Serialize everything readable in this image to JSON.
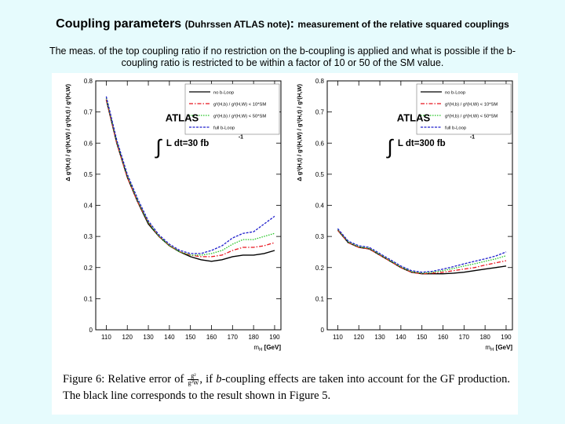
{
  "header": {
    "title_main": "Coupling parameters",
    "title_source": "(Duhrssen ATLAS note)",
    "title_colon": ":",
    "title_rest": "measurement of the relative squared couplings",
    "description": "The meas. of the top coupling ratio if no restriction on the b-coupling is applied and what is possible if the b-coupling ratio is restricted to be within a factor of 10 or 50 of the SM value."
  },
  "figure": {
    "caption_a": "Figure 6: Relative error of",
    "caption_frac_num": "g²",
    "caption_frac_den": "g²W",
    "caption_b": ", if",
    "caption_b_italic": "b",
    "caption_c": "-coupling effects are taken into account for the GF production. The black line corresponds to the result shown in Figure 5."
  },
  "colors": {
    "no_bloop": "#000000",
    "ratio10": "#e8141e",
    "ratio50": "#22c422",
    "full_bloop": "#2020cc"
  },
  "chart_data": [
    {
      "type": "line",
      "panel": "left",
      "experiment": "ATLAS",
      "luminosity": "L dt=30 fb",
      "lumi_exp": "-1",
      "ylabel": "Δ g²(H,t) / g²(H,W)  /  g²(H,t) / g²(H,W)",
      "xlabel": "m",
      "xlabel_sub": "H",
      "xlabel_unit": "[GeV]",
      "xlim": [
        105,
        193
      ],
      "ylim": [
        0,
        0.8
      ],
      "xticks": [
        110,
        120,
        130,
        140,
        150,
        160,
        170,
        180,
        190
      ],
      "yticks": [
        0,
        0.1,
        0.2,
        0.3,
        0.4,
        0.5,
        0.6,
        0.7,
        0.8
      ],
      "legend_position": "top-right",
      "series": [
        {
          "name": "no b-Loop",
          "style": "solid",
          "x": [
            110,
            115,
            120,
            125,
            130,
            135,
            140,
            145,
            150,
            155,
            160,
            165,
            170,
            175,
            180,
            185,
            190
          ],
          "y": [
            0.74,
            0.6,
            0.49,
            0.41,
            0.34,
            0.3,
            0.27,
            0.25,
            0.235,
            0.225,
            0.22,
            0.225,
            0.235,
            0.24,
            0.24,
            0.245,
            0.255
          ]
        },
        {
          "name": "g²(H,b) / g²(H,W) < 10*SM",
          "style": "dashdot",
          "x": [
            110,
            115,
            120,
            125,
            130,
            135,
            140,
            145,
            150,
            155,
            160,
            165,
            170,
            175,
            180,
            185,
            190
          ],
          "y": [
            0.74,
            0.6,
            0.49,
            0.41,
            0.345,
            0.3,
            0.27,
            0.25,
            0.24,
            0.235,
            0.235,
            0.24,
            0.255,
            0.265,
            0.265,
            0.27,
            0.28
          ]
        },
        {
          "name": "g²(H,b) / g²(H,W) < 50*SM",
          "style": "dotted",
          "x": [
            110,
            115,
            120,
            125,
            130,
            135,
            140,
            145,
            150,
            155,
            160,
            165,
            170,
            175,
            180,
            185,
            190
          ],
          "y": [
            0.745,
            0.605,
            0.495,
            0.415,
            0.345,
            0.3,
            0.27,
            0.25,
            0.24,
            0.24,
            0.245,
            0.255,
            0.275,
            0.29,
            0.29,
            0.3,
            0.31
          ]
        },
        {
          "name": "full b-Loop",
          "style": "dashed",
          "x": [
            110,
            115,
            120,
            125,
            130,
            135,
            140,
            145,
            150,
            155,
            160,
            165,
            170,
            175,
            180,
            185,
            190
          ],
          "y": [
            0.75,
            0.61,
            0.5,
            0.42,
            0.35,
            0.305,
            0.275,
            0.255,
            0.245,
            0.245,
            0.255,
            0.27,
            0.295,
            0.31,
            0.315,
            0.34,
            0.365
          ]
        }
      ]
    },
    {
      "type": "line",
      "panel": "right",
      "experiment": "ATLAS",
      "luminosity": "L dt=300 fb",
      "lumi_exp": "-1",
      "ylabel": "Δ g²(H,t) / g²(H,W)  /  g²(H,t) / g²(H,W)",
      "xlabel": "m",
      "xlabel_sub": "H",
      "xlabel_unit": "[GeV]",
      "xlim": [
        105,
        193
      ],
      "ylim": [
        0,
        0.8
      ],
      "xticks": [
        110,
        120,
        130,
        140,
        150,
        160,
        170,
        180,
        190
      ],
      "yticks": [
        0,
        0.1,
        0.2,
        0.3,
        0.4,
        0.5,
        0.6,
        0.7,
        0.8
      ],
      "legend_position": "top-right",
      "series": [
        {
          "name": "no b-Loop",
          "style": "solid",
          "x": [
            110,
            115,
            120,
            125,
            130,
            135,
            140,
            145,
            150,
            155,
            160,
            165,
            170,
            175,
            180,
            185,
            190
          ],
          "y": [
            0.32,
            0.28,
            0.265,
            0.26,
            0.24,
            0.22,
            0.2,
            0.185,
            0.18,
            0.18,
            0.18,
            0.182,
            0.185,
            0.19,
            0.195,
            0.2,
            0.205
          ]
        },
        {
          "name": "g²(H,b) / g²(H,W) < 10*SM",
          "style": "dashdot",
          "x": [
            110,
            115,
            120,
            125,
            130,
            135,
            140,
            145,
            150,
            155,
            160,
            165,
            170,
            175,
            180,
            185,
            190
          ],
          "y": [
            0.32,
            0.28,
            0.265,
            0.26,
            0.24,
            0.22,
            0.2,
            0.185,
            0.18,
            0.182,
            0.185,
            0.19,
            0.195,
            0.2,
            0.208,
            0.215,
            0.222
          ]
        },
        {
          "name": "g²(H,b) / g²(H,W) < 50*SM",
          "style": "dotted",
          "x": [
            110,
            115,
            120,
            125,
            130,
            135,
            140,
            145,
            150,
            155,
            160,
            165,
            170,
            175,
            180,
            185,
            190
          ],
          "y": [
            0.322,
            0.282,
            0.267,
            0.262,
            0.242,
            0.222,
            0.202,
            0.187,
            0.182,
            0.185,
            0.19,
            0.197,
            0.205,
            0.212,
            0.22,
            0.228,
            0.238
          ]
        },
        {
          "name": "full b-Loop",
          "style": "dashed",
          "x": [
            110,
            115,
            120,
            125,
            130,
            135,
            140,
            145,
            150,
            155,
            160,
            165,
            170,
            175,
            180,
            185,
            190
          ],
          "y": [
            0.325,
            0.285,
            0.27,
            0.265,
            0.245,
            0.225,
            0.205,
            0.19,
            0.185,
            0.188,
            0.195,
            0.203,
            0.212,
            0.22,
            0.228,
            0.237,
            0.25
          ]
        }
      ]
    }
  ]
}
